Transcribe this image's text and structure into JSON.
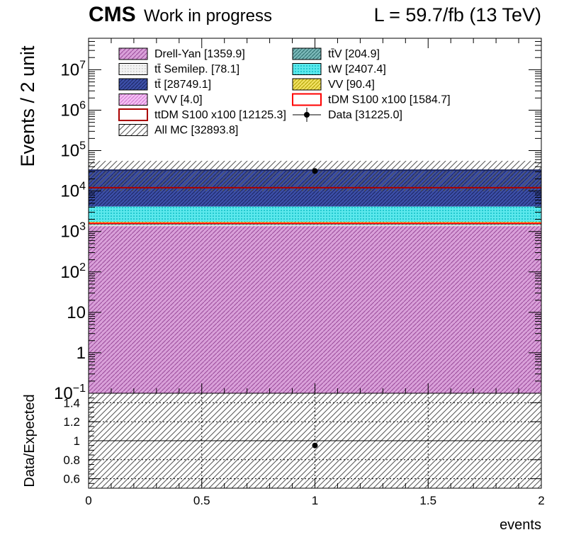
{
  "header": {
    "experiment": "CMS",
    "status": "Work in progress",
    "luminosity": "L = 59.7/fb (13 TeV)"
  },
  "chart_data": [
    {
      "type": "bar",
      "panel": "main",
      "ylabel": "Events / 2 unit",
      "log_y": true,
      "xlim": [
        0,
        2
      ],
      "ylim": [
        0.1,
        60000000
      ],
      "y_ticks": [
        {
          "label": "10",
          "exp": "7",
          "value": 10000000
        },
        {
          "label": "10",
          "exp": "6",
          "value": 1000000
        },
        {
          "label": "10",
          "exp": "5",
          "value": 100000
        },
        {
          "label": "10",
          "exp": "4",
          "value": 10000
        },
        {
          "label": "10",
          "exp": "3",
          "value": 1000
        },
        {
          "label": "10",
          "exp": "2",
          "value": 100
        },
        {
          "label": "10",
          "exp": "",
          "value": 10
        },
        {
          "label": "1",
          "exp": "",
          "value": 1
        },
        {
          "label": "10",
          "exp": "−1",
          "value": 0.1
        }
      ],
      "bin": [
        0,
        2
      ],
      "stack": [
        {
          "name": "Drell-Yan [1359.9]",
          "value": 1359.9,
          "color": "#c879c8",
          "pattern": "hatch"
        },
        {
          "name": "tt̄ Semilep. [78.1]",
          "value": 78.1,
          "color": "#dddddd",
          "pattern": "dots"
        },
        {
          "name": "tt̄V [204.9]",
          "value": 204.9,
          "color": "#4a9a9a",
          "pattern": "hatch"
        },
        {
          "name": "VVV [4.0]",
          "value": 4.0,
          "color": "#f0a0f0",
          "pattern": "hatch"
        },
        {
          "name": "VV [90.4]",
          "value": 90.4,
          "color": "#e8d800",
          "pattern": "hatch"
        },
        {
          "name": "tW [2407.4]",
          "value": 2407.4,
          "color": "#33e0e6",
          "pattern": "dots"
        },
        {
          "name": "tt̄ [28749.1]",
          "value": 28749.1,
          "color": "#2a3a8c",
          "pattern": "hatch"
        }
      ],
      "signals": [
        {
          "name": "ttDM S100 x100 [12125.3]",
          "value": 12125.3,
          "color": "#aa0000"
        },
        {
          "name": "tDM S100 x100 [1584.7]",
          "value": 1584.7,
          "color": "#ff0000"
        }
      ],
      "total_mc": {
        "name": "All MC [32893.8]",
        "value": 32893.8,
        "uncertainty": 23000
      },
      "data": {
        "name": "Data [31225.0]",
        "x": 1.0,
        "y": 31225.0
      }
    },
    {
      "type": "scatter",
      "panel": "ratio",
      "ylabel": "Data/Expected",
      "xlabel": "events",
      "xlim": [
        0,
        2
      ],
      "ylim": [
        0.5,
        1.5
      ],
      "x_ticks": [
        "0",
        "0.5",
        "1",
        "1.5",
        "2"
      ],
      "y_ticks": [
        "0.6",
        "0.8",
        "1",
        "1.2",
        "1.4"
      ],
      "points": [
        {
          "x": 1.0,
          "y": 0.95
        }
      ]
    }
  ],
  "legend": {
    "left": [
      {
        "label": "Drell-Yan [1359.9]",
        "style": "fill",
        "color": "#c879c8",
        "pattern": "hatch"
      },
      {
        "label": "tt̄ Semilep. [78.1]",
        "style": "fill",
        "color": "#dddddd",
        "pattern": "dots"
      },
      {
        "label": "tt̄ [28749.1]",
        "style": "fill",
        "color": "#2a3a8c",
        "pattern": "hatch"
      },
      {
        "label": "VVV [4.0]",
        "style": "fill",
        "color": "#f0a0f0",
        "pattern": "hatch"
      },
      {
        "label": "ttDM S100 x100 [12125.3]",
        "style": "line",
        "color": "#aa0000"
      },
      {
        "label": "All MC [32893.8]",
        "style": "hatch",
        "color": "#555555"
      }
    ],
    "right": [
      {
        "label": "tt̄V [204.9]",
        "style": "fill",
        "color": "#4a9a9a",
        "pattern": "hatch"
      },
      {
        "label": "tW [2407.4]",
        "style": "fill",
        "color": "#33e0e6",
        "pattern": "dots"
      },
      {
        "label": "VV [90.4]",
        "style": "fill",
        "color": "#e8d800",
        "pattern": "hatch"
      },
      {
        "label": "tDM S100 x100 [1584.7]",
        "style": "line",
        "color": "#ff0000"
      },
      {
        "label": "Data [31225.0]",
        "style": "marker",
        "color": "#000000"
      }
    ]
  }
}
